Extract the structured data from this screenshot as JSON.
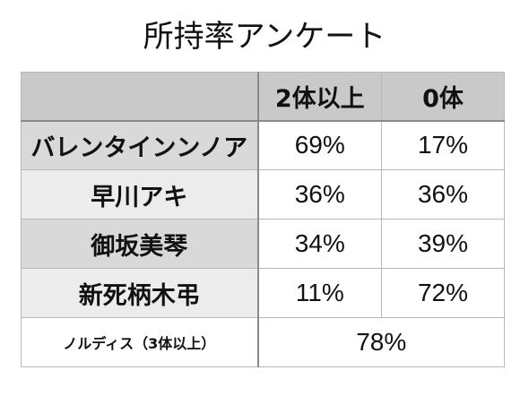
{
  "title": "所持率アンケート",
  "table": {
    "headers": [
      "",
      "2体以上",
      "0体"
    ],
    "rows": [
      {
        "name": "バレンタインンノア",
        "values": [
          "69%",
          "17%"
        ]
      },
      {
        "name": "早川アキ",
        "values": [
          "36%",
          "36%"
        ]
      },
      {
        "name": "御坂美琴",
        "values": [
          "34%",
          "39%"
        ]
      },
      {
        "name": "新死柄木弔",
        "values": [
          "11%",
          "72%"
        ]
      }
    ],
    "last_row": {
      "name": "ノルディス（3体以上）",
      "value": "78%"
    }
  },
  "colors": {
    "header_bg": "#c9c9c9",
    "name_bg_dark": "#d9d9d9",
    "name_bg_light": "#ececec",
    "border": "#b8b8b8"
  }
}
